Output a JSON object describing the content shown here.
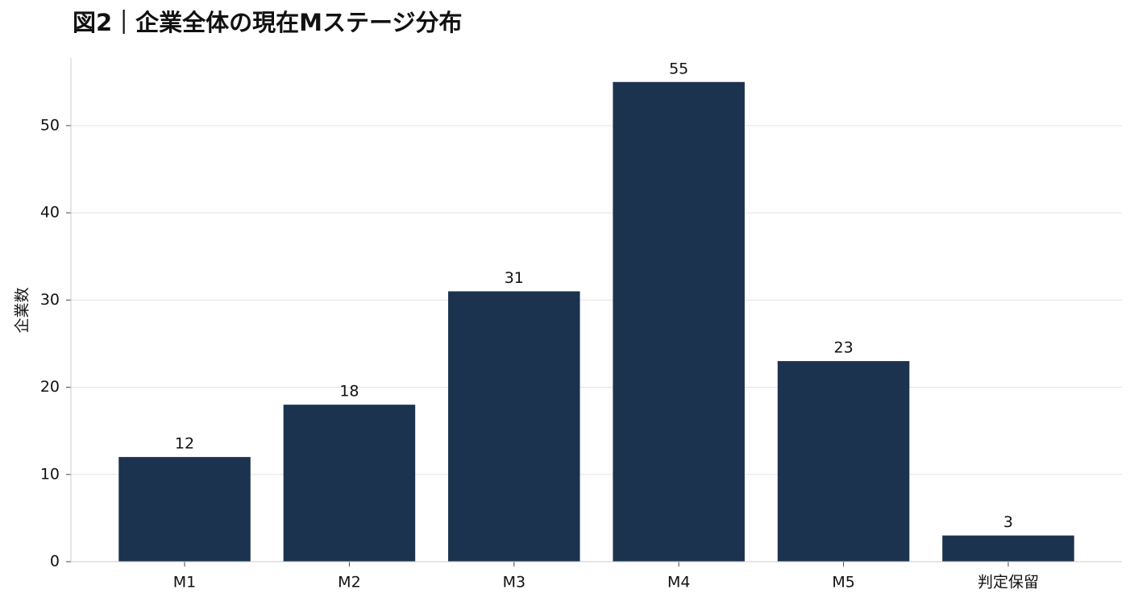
{
  "chart_data": {
    "type": "bar",
    "title": "図2｜企業全体の現在Mステージ分布",
    "y_label": "企業数",
    "categories": [
      "M1",
      "M2",
      "M3",
      "M4",
      "M5",
      "判定保留"
    ],
    "values": [
      12,
      18,
      31,
      55,
      23,
      3
    ],
    "color": "#1b334e",
    "ylim": [
      0,
      57.75
    ],
    "yticks": [
      0,
      10,
      20,
      30,
      40,
      50
    ],
    "grid": true
  }
}
